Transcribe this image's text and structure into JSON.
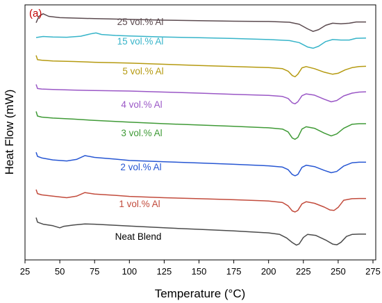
{
  "chart_data": {
    "type": "line",
    "panel_label": "(a)",
    "xlabel": "Temperature (°C)",
    "ylabel": "Heat Flow (mW)",
    "xlim": [
      25,
      277
    ],
    "xticks": [
      25,
      50,
      75,
      100,
      125,
      150,
      175,
      200,
      225,
      250,
      275
    ],
    "ylim": [
      0,
      100
    ],
    "grid": false,
    "series": [
      {
        "label": "25 vol.% Al",
        "color": "#5b4a4f",
        "points": [
          [
            33,
            93.0
          ],
          [
            35,
            95.5
          ],
          [
            38,
            96.5
          ],
          [
            42,
            95.5
          ],
          [
            50,
            95.0
          ],
          [
            75,
            94.6
          ],
          [
            100,
            94.3
          ],
          [
            125,
            94.0
          ],
          [
            150,
            93.8
          ],
          [
            175,
            93.6
          ],
          [
            200,
            93.5
          ],
          [
            215,
            93.2
          ],
          [
            222,
            92.4
          ],
          [
            228,
            90.6
          ],
          [
            232,
            89.6
          ],
          [
            236,
            90.3
          ],
          [
            241,
            92.0
          ],
          [
            246,
            92.8
          ],
          [
            252,
            92.6
          ],
          [
            258,
            92.8
          ],
          [
            263,
            93.3
          ],
          [
            270,
            93.3
          ]
        ]
      },
      {
        "label": "15 vol.% Al",
        "color": "#36b4c9",
        "points": [
          [
            33,
            87.2
          ],
          [
            38,
            87.6
          ],
          [
            45,
            87.4
          ],
          [
            55,
            87.3
          ],
          [
            65,
            87.7
          ],
          [
            72,
            88.6
          ],
          [
            76,
            89.0
          ],
          [
            80,
            88.4
          ],
          [
            90,
            88.0
          ],
          [
            100,
            87.8
          ],
          [
            125,
            87.4
          ],
          [
            150,
            87.1
          ],
          [
            175,
            86.8
          ],
          [
            200,
            86.4
          ],
          [
            215,
            86.0
          ],
          [
            222,
            85.2
          ],
          [
            228,
            83.5
          ],
          [
            232,
            83.0
          ],
          [
            236,
            83.8
          ],
          [
            241,
            85.6
          ],
          [
            246,
            86.4
          ],
          [
            252,
            86.2
          ],
          [
            258,
            86.2
          ],
          [
            263,
            86.9
          ],
          [
            270,
            87.0
          ]
        ]
      },
      {
        "label": "5 vol.% Al",
        "color": "#b59a10",
        "points": [
          [
            33,
            80.2
          ],
          [
            34,
            78.5
          ],
          [
            37,
            78.3
          ],
          [
            45,
            78.0
          ],
          [
            60,
            77.8
          ],
          [
            75,
            77.5
          ],
          [
            100,
            77.2
          ],
          [
            125,
            76.7
          ],
          [
            150,
            76.2
          ],
          [
            175,
            75.8
          ],
          [
            200,
            75.4
          ],
          [
            210,
            75.0
          ],
          [
            214,
            74.0
          ],
          [
            217,
            72.3
          ],
          [
            219,
            71.8
          ],
          [
            221,
            72.8
          ],
          [
            224,
            75.3
          ],
          [
            227,
            75.8
          ],
          [
            233,
            75.0
          ],
          [
            240,
            73.6
          ],
          [
            246,
            72.8
          ],
          [
            250,
            73.2
          ],
          [
            255,
            74.5
          ],
          [
            260,
            75.4
          ],
          [
            265,
            75.8
          ],
          [
            270,
            75.9
          ]
        ]
      },
      {
        "label": "4 vol.% Al",
        "color": "#9a57c6",
        "points": [
          [
            33,
            68.8
          ],
          [
            34,
            67.2
          ],
          [
            37,
            67.0
          ],
          [
            45,
            66.8
          ],
          [
            60,
            66.6
          ],
          [
            75,
            66.4
          ],
          [
            100,
            66.2
          ],
          [
            125,
            65.8
          ],
          [
            150,
            65.4
          ],
          [
            175,
            64.9
          ],
          [
            200,
            64.5
          ],
          [
            210,
            64.1
          ],
          [
            214,
            63.3
          ],
          [
            217,
            61.6
          ],
          [
            219,
            61.2
          ],
          [
            221,
            62.0
          ],
          [
            224,
            64.4
          ],
          [
            227,
            65.1
          ],
          [
            233,
            64.6
          ],
          [
            240,
            63.0
          ],
          [
            245,
            62.0
          ],
          [
            249,
            62.5
          ],
          [
            254,
            64.3
          ],
          [
            260,
            65.4
          ],
          [
            265,
            65.8
          ],
          [
            270,
            65.9
          ]
        ]
      },
      {
        "label": "3 vol.% Al",
        "color": "#3f9a36",
        "points": [
          [
            33,
            58.2
          ],
          [
            34,
            56.4
          ],
          [
            37,
            56.0
          ],
          [
            45,
            55.6
          ],
          [
            60,
            55.2
          ],
          [
            75,
            54.7
          ],
          [
            100,
            54.0
          ],
          [
            125,
            53.4
          ],
          [
            150,
            52.9
          ],
          [
            175,
            52.4
          ],
          [
            200,
            51.8
          ],
          [
            210,
            51.3
          ],
          [
            214,
            50.2
          ],
          [
            217,
            47.8
          ],
          [
            219,
            47.3
          ],
          [
            221,
            48.0
          ],
          [
            224,
            51.3
          ],
          [
            227,
            52.2
          ],
          [
            233,
            51.6
          ],
          [
            240,
            49.7
          ],
          [
            245,
            48.6
          ],
          [
            249,
            49.4
          ],
          [
            254,
            51.6
          ],
          [
            260,
            53.2
          ],
          [
            265,
            53.4
          ],
          [
            270,
            53.4
          ]
        ]
      },
      {
        "label": "2 vol.% Al",
        "color": "#2656d3",
        "points": [
          [
            33,
            42.2
          ],
          [
            34,
            40.6
          ],
          [
            37,
            40.0
          ],
          [
            45,
            39.2
          ],
          [
            55,
            38.8
          ],
          [
            62,
            39.4
          ],
          [
            68,
            40.9
          ],
          [
            75,
            40.2
          ],
          [
            90,
            39.5
          ],
          [
            100,
            39.0
          ],
          [
            125,
            38.5
          ],
          [
            150,
            38.0
          ],
          [
            175,
            37.5
          ],
          [
            200,
            36.9
          ],
          [
            210,
            36.4
          ],
          [
            214,
            35.4
          ],
          [
            217,
            33.5
          ],
          [
            219,
            33.0
          ],
          [
            221,
            33.5
          ],
          [
            224,
            36.3
          ],
          [
            227,
            37.1
          ],
          [
            233,
            36.6
          ],
          [
            240,
            35.1
          ],
          [
            245,
            34.2
          ],
          [
            249,
            34.7
          ],
          [
            254,
            36.8
          ],
          [
            260,
            38.1
          ],
          [
            265,
            38.3
          ],
          [
            270,
            38.3
          ]
        ]
      },
      {
        "label": "1 vol.% Al",
        "color": "#c24b3c",
        "points": [
          [
            33,
            27.6
          ],
          [
            34,
            26.0
          ],
          [
            37,
            25.5
          ],
          [
            45,
            25.0
          ],
          [
            55,
            24.4
          ],
          [
            62,
            25.0
          ],
          [
            68,
            26.4
          ],
          [
            75,
            25.8
          ],
          [
            90,
            25.3
          ],
          [
            100,
            24.9
          ],
          [
            125,
            24.4
          ],
          [
            150,
            24.0
          ],
          [
            175,
            23.6
          ],
          [
            200,
            23.1
          ],
          [
            210,
            22.5
          ],
          [
            214,
            21.2
          ],
          [
            217,
            19.2
          ],
          [
            219,
            18.8
          ],
          [
            221,
            19.4
          ],
          [
            224,
            22.0
          ],
          [
            227,
            22.8
          ],
          [
            233,
            22.2
          ],
          [
            240,
            20.7
          ],
          [
            244,
            19.6
          ],
          [
            247,
            19.4
          ],
          [
            250,
            20.6
          ],
          [
            254,
            23.4
          ],
          [
            260,
            24.0
          ],
          [
            265,
            24.1
          ],
          [
            270,
            24.1
          ]
        ]
      },
      {
        "label": "Neat Blend",
        "color": "#4a4a4a",
        "points": [
          [
            33,
            16.6
          ],
          [
            34,
            14.8
          ],
          [
            38,
            14.0
          ],
          [
            45,
            13.4
          ],
          [
            50,
            12.6
          ],
          [
            53,
            13.2
          ],
          [
            60,
            13.7
          ],
          [
            68,
            14.1
          ],
          [
            75,
            14.0
          ],
          [
            100,
            13.3
          ],
          [
            125,
            12.6
          ],
          [
            150,
            12.0
          ],
          [
            175,
            11.4
          ],
          [
            200,
            10.6
          ],
          [
            208,
            10.0
          ],
          [
            213,
            8.6
          ],
          [
            217,
            6.8
          ],
          [
            220,
            5.8
          ],
          [
            222,
            6.3
          ],
          [
            225,
            8.8
          ],
          [
            228,
            10.0
          ],
          [
            234,
            9.6
          ],
          [
            241,
            7.8
          ],
          [
            246,
            6.2
          ],
          [
            249,
            5.9
          ],
          [
            252,
            6.9
          ],
          [
            256,
            9.2
          ],
          [
            260,
            10.0
          ],
          [
            265,
            10.1
          ],
          [
            270,
            10.1
          ]
        ]
      }
    ]
  }
}
